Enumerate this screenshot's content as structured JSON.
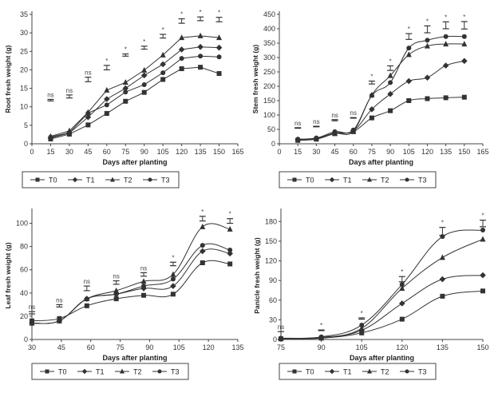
{
  "figure": {
    "series_names": [
      "T0",
      "T1",
      "T2",
      "T3"
    ],
    "series_markers": [
      "square",
      "diamond",
      "triangle",
      "circle"
    ],
    "line_color": "#333333"
  },
  "chart_data": [
    {
      "id": "root",
      "type": "line",
      "title": "",
      "xlabel": "Days after planting",
      "ylabel": "Root fresh weight (g)",
      "xlim": [
        0,
        165
      ],
      "ylim": [
        0,
        35
      ],
      "xticks": [
        0,
        15,
        30,
        45,
        60,
        75,
        90,
        105,
        120,
        135,
        150,
        165
      ],
      "yticks": [
        0,
        5,
        10,
        15,
        20,
        25,
        30,
        35
      ],
      "x": [
        15,
        30,
        45,
        60,
        75,
        90,
        105,
        120,
        135,
        150
      ],
      "series": [
        {
          "name": "T0",
          "values": [
            1.3,
            2.6,
            5.1,
            8.2,
            11.5,
            13.9,
            17.4,
            20.3,
            20.7,
            19.0
          ]
        },
        {
          "name": "T1",
          "values": [
            1.6,
            2.9,
            7.2,
            12.1,
            15.0,
            18.5,
            21.5,
            25.5,
            26.2,
            26.0
          ]
        },
        {
          "name": "T2",
          "values": [
            2.0,
            3.5,
            8.5,
            14.5,
            16.6,
            19.9,
            24.0,
            28.7,
            29.2,
            28.7
          ]
        },
        {
          "name": "T3",
          "values": [
            1.8,
            3.0,
            8.3,
            10.5,
            14.0,
            16.0,
            19.2,
            23.1,
            23.7,
            23.5
          ]
        }
      ],
      "error_bars": [
        {
          "x": 15,
          "y": 11.8,
          "err": 0.2,
          "label": "ns"
        },
        {
          "x": 30,
          "y": 12.8,
          "err": 0.4,
          "label": "ns"
        },
        {
          "x": 45,
          "y": 17.4,
          "err": 0.6,
          "label": "ns"
        },
        {
          "x": 60,
          "y": 20.6,
          "err": 0.6,
          "label": "*"
        },
        {
          "x": 75,
          "y": 24.0,
          "err": 0.3,
          "label": "*"
        },
        {
          "x": 90,
          "y": 26.0,
          "err": 0.4,
          "label": "*"
        },
        {
          "x": 105,
          "y": 29.1,
          "err": 0.5,
          "label": "*"
        },
        {
          "x": 120,
          "y": 33.2,
          "err": 0.6,
          "label": "*"
        },
        {
          "x": 135,
          "y": 33.8,
          "err": 0.5,
          "label": "*"
        },
        {
          "x": 150,
          "y": 33.6,
          "err": 0.6,
          "label": "*"
        }
      ],
      "smooth": false,
      "legend": "bottom"
    },
    {
      "id": "stem",
      "type": "line",
      "title": "",
      "xlabel": "Days after planting",
      "ylabel": "Stem fresh weight (g)",
      "xlim": [
        0,
        165
      ],
      "ylim": [
        0,
        450
      ],
      "xticks": [
        0,
        15,
        30,
        45,
        60,
        75,
        90,
        105,
        120,
        135,
        150,
        165
      ],
      "yticks": [
        0,
        50,
        100,
        150,
        200,
        250,
        300,
        350,
        400,
        450
      ],
      "x": [
        15,
        30,
        45,
        60,
        75,
        90,
        105,
        120,
        135,
        150
      ],
      "series": [
        {
          "name": "T0",
          "values": [
            12,
            16,
            35,
            42,
            90,
            115,
            150,
            157,
            160,
            162
          ]
        },
        {
          "name": "T1",
          "values": [
            14,
            18,
            38,
            45,
            120,
            173,
            218,
            230,
            272,
            288
          ]
        },
        {
          "name": "T2",
          "values": [
            15,
            19,
            36,
            44,
            170,
            237,
            310,
            340,
            347,
            347
          ]
        },
        {
          "name": "T3",
          "values": [
            16,
            20,
            42,
            48,
            168,
            213,
            333,
            360,
            373,
            373
          ]
        }
      ],
      "error_bars": [
        {
          "x": 15,
          "y": 55,
          "err": 1,
          "label": "ns"
        },
        {
          "x": 30,
          "y": 60,
          "err": 1,
          "label": "ns"
        },
        {
          "x": 45,
          "y": 82,
          "err": 2,
          "label": "ns"
        },
        {
          "x": 60,
          "y": 90,
          "err": 1,
          "label": "ns"
        },
        {
          "x": 75,
          "y": 213,
          "err": 5,
          "label": "*"
        },
        {
          "x": 90,
          "y": 263,
          "err": 8,
          "label": "*"
        },
        {
          "x": 105,
          "y": 373,
          "err": 10,
          "label": "*"
        },
        {
          "x": 120,
          "y": 398,
          "err": 12,
          "label": "*"
        },
        {
          "x": 135,
          "y": 412,
          "err": 12,
          "label": "*"
        },
        {
          "x": 150,
          "y": 412,
          "err": 13,
          "label": "*"
        }
      ],
      "smooth": true,
      "legend": "bottom"
    },
    {
      "id": "leaf",
      "type": "line",
      "title": "",
      "xlabel": "Days after planting",
      "ylabel": "Leaf fresh weight (g)",
      "xlim": [
        30,
        135
      ],
      "ylim": [
        0,
        110
      ],
      "xticks": [
        30,
        45,
        60,
        75,
        90,
        105,
        120,
        135
      ],
      "yticks": [
        0,
        20,
        40,
        60,
        80,
        100
      ],
      "x": [
        30,
        44,
        58,
        73,
        87,
        102,
        117,
        131
      ],
      "series": [
        {
          "name": "T0",
          "values": [
            16,
            18,
            29,
            35,
            38,
            39,
            66,
            65
          ]
        },
        {
          "name": "T1",
          "values": [
            14,
            16,
            35,
            39,
            44,
            46,
            76,
            74
          ]
        },
        {
          "name": "T2",
          "values": [
            14,
            16,
            35,
            42,
            50,
            56,
            97,
            95
          ]
        },
        {
          "name": "T3",
          "values": [
            14,
            16,
            35,
            39,
            46,
            52,
            81,
            77
          ]
        }
      ],
      "error_bars": [
        {
          "x": 30,
          "y": 23,
          "err": 1,
          "label": "ns"
        },
        {
          "x": 44,
          "y": 29,
          "err": 1,
          "label": "ns"
        },
        {
          "x": 58,
          "y": 44,
          "err": 2,
          "label": "ns"
        },
        {
          "x": 73,
          "y": 49,
          "err": 1.5,
          "label": "ns"
        },
        {
          "x": 87,
          "y": 56,
          "err": 1.5,
          "label": "ns"
        },
        {
          "x": 102,
          "y": 65,
          "err": 1.5,
          "label": "*"
        },
        {
          "x": 117,
          "y": 104,
          "err": 2,
          "label": "*"
        },
        {
          "x": 131,
          "y": 102,
          "err": 2,
          "label": "*"
        }
      ],
      "smooth": true,
      "legend": "bottom"
    },
    {
      "id": "panicle",
      "type": "line",
      "title": "",
      "xlabel": "Days after planting",
      "ylabel": "Panicle fresh weight (g)",
      "xlim": [
        75,
        150
      ],
      "ylim": [
        0,
        195
      ],
      "xticks": [
        75,
        90,
        105,
        120,
        135,
        150
      ],
      "yticks": [
        0,
        30,
        60,
        90,
        120,
        150,
        180
      ],
      "x": [
        75,
        90,
        105,
        120,
        135,
        150
      ],
      "series": [
        {
          "name": "T0",
          "values": [
            1,
            2,
            10,
            31,
            66,
            74
          ]
        },
        {
          "name": "T1",
          "values": [
            1,
            3,
            14,
            55,
            92,
            98
          ]
        },
        {
          "name": "T2",
          "values": [
            1,
            3,
            17,
            78,
            125,
            153
          ]
        },
        {
          "name": "T3",
          "values": [
            2,
            4,
            22,
            84,
            157,
            167
          ]
        }
      ],
      "error_bars": [
        {
          "x": 75,
          "y": 6,
          "err": 6,
          "label": "ns"
        },
        {
          "x": 90,
          "y": 14,
          "err": 0.5,
          "label": "*"
        },
        {
          "x": 105,
          "y": 32,
          "err": 1,
          "label": "*"
        },
        {
          "x": 120,
          "y": 92,
          "err": 4,
          "label": "*"
        },
        {
          "x": 135,
          "y": 165,
          "err": 6,
          "label": "*"
        },
        {
          "x": 150,
          "y": 177,
          "err": 5,
          "label": "*"
        }
      ],
      "smooth": true,
      "legend": "bottom"
    }
  ]
}
